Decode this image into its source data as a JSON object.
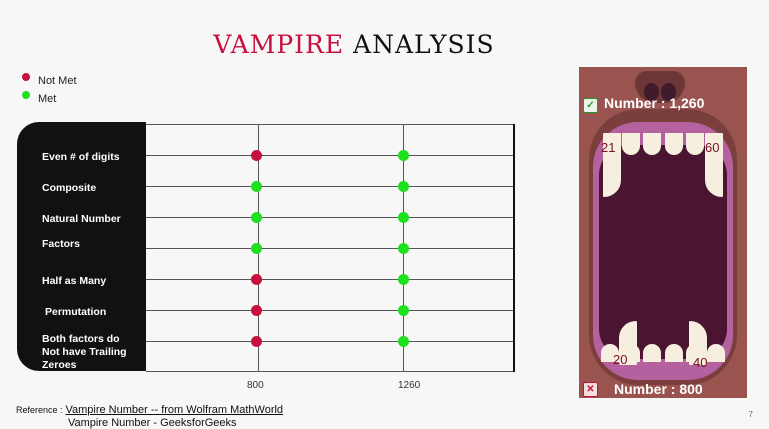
{
  "title": {
    "word1": "VAMPIRE",
    "word2": "ANALYSIS"
  },
  "colors": {
    "not_met": "#c8103e",
    "met": "#1ee01e",
    "accent": "#c8103e"
  },
  "legend": [
    {
      "label": "Not Met",
      "color": "#c8103e"
    },
    {
      "label": "Met",
      "color": "#1ee01e"
    }
  ],
  "chart": {
    "x_ticks": [
      "800",
      "1260"
    ],
    "rows": [
      {
        "label": "Even # of digits",
        "v800": "not_met",
        "v1260": "met"
      },
      {
        "label": "Composite",
        "v800": "met",
        "v1260": "met"
      },
      {
        "label": "Natural Number",
        "v800": "met",
        "v1260": "met"
      },
      {
        "label": "Factors",
        "v800": "met",
        "v1260": "met"
      },
      {
        "label": "Half as Many",
        "v800": "not_met",
        "v1260": "met"
      },
      {
        "label": "Permutation",
        "v800": "not_met",
        "v1260": "met"
      },
      {
        "label": "Both factors do Not have Trailing Zeroes",
        "v800": "not_met",
        "v1260": "met"
      }
    ]
  },
  "illustration": {
    "top_title": "Number : 1,260",
    "bottom_title": "Number : 800",
    "top_left": "21",
    "top_right": "60",
    "bottom_left": "20",
    "bottom_right": "40",
    "check_icon": "check-icon",
    "cross_icon": "cross-icon"
  },
  "reference": {
    "label": "Reference :",
    "link1": "Vampire Number -- from Wolfram MathWorld",
    "link2": "Vampire Number - GeeksforGeeks"
  },
  "page_number": "7"
}
